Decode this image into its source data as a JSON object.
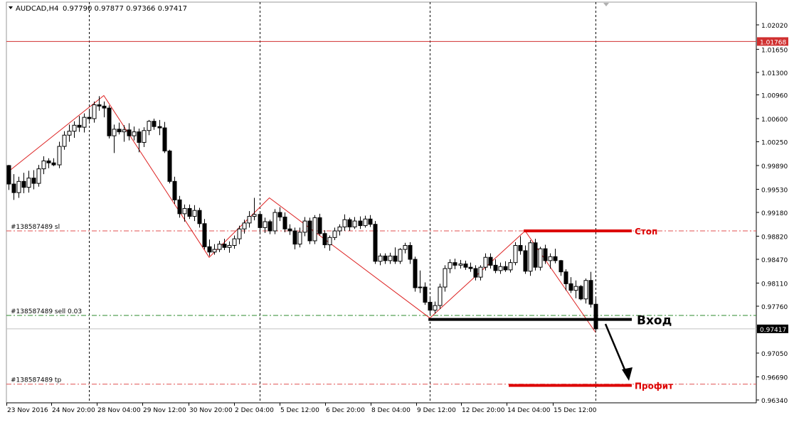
{
  "header": {
    "symbol": "AUDCAD,H4",
    "ohlc": "0.97790 0.97877 0.97366 0.97417"
  },
  "chart_data": {
    "type": "candlestick",
    "symbol": "AUDCAD",
    "timeframe": "H4",
    "yaxis_ticks": [
      1.0202,
      1.0165,
      1.013,
      1.0096,
      1.006,
      1.0025,
      0.9989,
      0.9953,
      0.9918,
      0.9882,
      0.9847,
      0.9811,
      0.9776,
      0.9705,
      0.9669,
      0.9634
    ],
    "ylim": [
      0.9634,
      1.0245
    ],
    "xaxis_labels": [
      "23 Nov 2016",
      "24 Nov 20:00",
      "28 Nov 04:00",
      "29 Nov 12:00",
      "30 Nov 20:00",
      "2 Dec 04:00",
      "5 Dec 12:00",
      "6 Dec 20:00",
      "8 Dec 04:00",
      "9 Dec 12:00",
      "12 Dec 20:00",
      "14 Dec 04:00",
      "15 Dec 12:00"
    ],
    "bar_count": 118,
    "candles": [
      [
        0.9989,
        0.999,
        0.9952,
        0.9961
      ],
      [
        0.9961,
        0.9976,
        0.9937,
        0.9948
      ],
      [
        0.9948,
        0.9972,
        0.994,
        0.9965
      ],
      [
        0.9965,
        0.9978,
        0.9947,
        0.9956
      ],
      [
        0.9956,
        0.9981,
        0.9948,
        0.997
      ],
      [
        0.997,
        0.9982,
        0.9953,
        0.9962
      ],
      [
        0.9962,
        0.999,
        0.9957,
        0.9984
      ],
      [
        0.9984,
        1.0003,
        0.9976,
        0.9996
      ],
      [
        0.9996,
        1.0,
        0.9985,
        0.9993
      ],
      [
        0.9993,
        1.0,
        0.9988,
        0.999
      ],
      [
        0.999,
        1.0025,
        0.9985,
        1.0018
      ],
      [
        1.0018,
        1.0041,
        1.0013,
        1.0035
      ],
      [
        1.0035,
        1.0051,
        1.0025,
        1.0041
      ],
      [
        1.0041,
        1.0056,
        1.0031,
        1.005
      ],
      [
        1.005,
        1.0064,
        1.004,
        1.0047
      ],
      [
        1.0047,
        1.0068,
        1.0039,
        1.0062
      ],
      [
        1.0062,
        1.0073,
        1.0056,
        1.006
      ],
      [
        1.006,
        1.0086,
        1.0054,
        1.0081
      ],
      [
        1.0081,
        1.0094,
        1.0072,
        1.0079
      ],
      [
        1.0079,
        1.0086,
        1.0062,
        1.0076
      ],
      [
        1.0076,
        1.008,
        1.003,
        1.0034
      ],
      [
        1.0034,
        1.0051,
        1.0008,
        1.0044
      ],
      [
        1.0044,
        1.0054,
        1.0036,
        1.004
      ],
      [
        1.004,
        1.005,
        1.0025,
        1.0043
      ],
      [
        1.0043,
        1.0053,
        1.0027,
        1.0034
      ],
      [
        1.0034,
        1.0048,
        1.0027,
        1.004
      ],
      [
        1.004,
        1.0045,
        1.0009,
        1.0024
      ],
      [
        1.0024,
        1.0047,
        1.0017,
        1.0042
      ],
      [
        1.0042,
        1.0058,
        1.0035,
        1.0056
      ],
      [
        1.0056,
        1.006,
        1.0043,
        1.0048
      ],
      [
        1.0048,
        1.0058,
        1.0035,
        1.0046
      ],
      [
        1.0046,
        1.0055,
        1.0008,
        1.0011
      ],
      [
        1.0011,
        1.0013,
        0.9962,
        0.9965
      ],
      [
        0.9965,
        0.9972,
        0.9931,
        0.9937
      ],
      [
        0.9937,
        0.9943,
        0.991,
        0.9916
      ],
      [
        0.9916,
        0.993,
        0.9904,
        0.9924
      ],
      [
        0.9924,
        0.993,
        0.9908,
        0.9912
      ],
      [
        0.9912,
        0.9929,
        0.9905,
        0.9921
      ],
      [
        0.9921,
        0.9925,
        0.9895,
        0.9901
      ],
      [
        0.9901,
        0.9908,
        0.9862,
        0.9866
      ],
      [
        0.9866,
        0.9877,
        0.9852,
        0.9858
      ],
      [
        0.9858,
        0.987,
        0.9854,
        0.9862
      ],
      [
        0.9862,
        0.9875,
        0.9858,
        0.987
      ],
      [
        0.987,
        0.9878,
        0.9861,
        0.9865
      ],
      [
        0.9865,
        0.9874,
        0.9857,
        0.9868
      ],
      [
        0.9868,
        0.9883,
        0.9863,
        0.9878
      ],
      [
        0.9878,
        0.9898,
        0.987,
        0.9893
      ],
      [
        0.9893,
        0.9907,
        0.9886,
        0.9902
      ],
      [
        0.9902,
        0.992,
        0.9895,
        0.9912
      ],
      [
        0.9912,
        0.994,
        0.9906,
        0.9915
      ],
      [
        0.9915,
        0.992,
        0.9888,
        0.9895
      ],
      [
        0.9895,
        0.991,
        0.9887,
        0.9904
      ],
      [
        0.9904,
        0.9907,
        0.9885,
        0.989
      ],
      [
        0.989,
        0.9923,
        0.9885,
        0.9918
      ],
      [
        0.9918,
        0.9926,
        0.9905,
        0.9911
      ],
      [
        0.9911,
        0.9918,
        0.9888,
        0.9893
      ],
      [
        0.9893,
        0.99,
        0.9884,
        0.989
      ],
      [
        0.989,
        0.9895,
        0.9862,
        0.987
      ],
      [
        0.987,
        0.9895,
        0.9865,
        0.9888
      ],
      [
        0.9888,
        0.9911,
        0.9882,
        0.9905
      ],
      [
        0.9905,
        0.991,
        0.987,
        0.9875
      ],
      [
        0.9875,
        0.9914,
        0.987,
        0.991
      ],
      [
        0.991,
        0.9916,
        0.9883,
        0.9886
      ],
      [
        0.9886,
        0.9891,
        0.9864,
        0.9869
      ],
      [
        0.9869,
        0.9883,
        0.986,
        0.988
      ],
      [
        0.988,
        0.9895,
        0.9876,
        0.989
      ],
      [
        0.989,
        0.99,
        0.9883,
        0.9896
      ],
      [
        0.9896,
        0.9915,
        0.989,
        0.9907
      ],
      [
        0.9907,
        0.991,
        0.989,
        0.9896
      ],
      [
        0.9896,
        0.9911,
        0.9893,
        0.9905
      ],
      [
        0.9905,
        0.9912,
        0.9893,
        0.9898
      ],
      [
        0.9898,
        0.9913,
        0.9895,
        0.9908
      ],
      [
        0.9908,
        0.9914,
        0.9896,
        0.99
      ],
      [
        0.99,
        0.9905,
        0.984,
        0.9844
      ],
      [
        0.9844,
        0.9856,
        0.9838,
        0.9852
      ],
      [
        0.9852,
        0.9856,
        0.984,
        0.9845
      ],
      [
        0.9845,
        0.9857,
        0.984,
        0.9852
      ],
      [
        0.9852,
        0.9865,
        0.984,
        0.9844
      ],
      [
        0.9844,
        0.9864,
        0.984,
        0.9862
      ],
      [
        0.9862,
        0.9872,
        0.9856,
        0.9868
      ],
      [
        0.9868,
        0.9873,
        0.984,
        0.9847
      ],
      [
        0.9847,
        0.9851,
        0.9798,
        0.9804
      ],
      [
        0.9804,
        0.983,
        0.9796,
        0.9805
      ],
      [
        0.9805,
        0.9812,
        0.9778,
        0.9782
      ],
      [
        0.9782,
        0.9789,
        0.9763,
        0.977
      ],
      [
        0.977,
        0.9783,
        0.9765,
        0.9777
      ],
      [
        0.9777,
        0.981,
        0.9772,
        0.9805
      ],
      [
        0.9805,
        0.9838,
        0.9798,
        0.9833
      ],
      [
        0.9833,
        0.9847,
        0.9826,
        0.9842
      ],
      [
        0.9842,
        0.9848,
        0.9832,
        0.9838
      ],
      [
        0.9838,
        0.9846,
        0.9833,
        0.984
      ],
      [
        0.984,
        0.9845,
        0.9831,
        0.9835
      ],
      [
        0.9835,
        0.9842,
        0.9828,
        0.9833
      ],
      [
        0.9833,
        0.9838,
        0.9815,
        0.982
      ],
      [
        0.982,
        0.9838,
        0.9815,
        0.9835
      ],
      [
        0.9835,
        0.9856,
        0.983,
        0.985
      ],
      [
        0.985,
        0.9856,
        0.9833,
        0.9838
      ],
      [
        0.9838,
        0.9847,
        0.9826,
        0.983
      ],
      [
        0.983,
        0.9842,
        0.9825,
        0.9836
      ],
      [
        0.9836,
        0.9844,
        0.9828,
        0.9831
      ],
      [
        0.9831,
        0.9847,
        0.9827,
        0.9842
      ],
      [
        0.9842,
        0.9873,
        0.9838,
        0.9868
      ],
      [
        0.9868,
        0.9882,
        0.9854,
        0.986
      ],
      [
        0.986,
        0.9868,
        0.9825,
        0.9829
      ],
      [
        0.9829,
        0.9876,
        0.9822,
        0.9872
      ],
      [
        0.9872,
        0.9878,
        0.983,
        0.9835
      ],
      [
        0.9835,
        0.9866,
        0.983,
        0.9863
      ],
      [
        0.9863,
        0.9869,
        0.984,
        0.9845
      ],
      [
        0.9845,
        0.9856,
        0.9833,
        0.9851
      ],
      [
        0.9851,
        0.9863,
        0.9841,
        0.9845
      ],
      [
        0.9845,
        0.9846,
        0.9822,
        0.9828
      ],
      [
        0.9828,
        0.9832,
        0.98,
        0.981
      ],
      [
        0.981,
        0.982,
        0.9796,
        0.98
      ],
      [
        0.98,
        0.9815,
        0.9788,
        0.9806
      ],
      [
        0.9806,
        0.9808,
        0.9785,
        0.9787
      ],
      [
        0.9787,
        0.9818,
        0.978,
        0.9815
      ],
      [
        0.9815,
        0.9828,
        0.9774,
        0.9779
      ],
      [
        0.9779,
        0.97877,
        0.97366,
        0.97417
      ]
    ],
    "zigzag": [
      {
        "bar": 0,
        "price": 0.998
      },
      {
        "bar": 19,
        "price": 1.0095
      },
      {
        "bar": 40,
        "price": 0.985
      },
      {
        "bar": 52,
        "price": 0.994
      },
      {
        "bar": 84,
        "price": 0.9758
      },
      {
        "bar": 103,
        "price": 0.989
      },
      {
        "bar": 117,
        "price": 0.97366
      }
    ],
    "order_lines": [
      {
        "label": "#138587489 sl",
        "price": 0.989,
        "color": "#e05050"
      },
      {
        "label": "#138587489 sell 0.03",
        "price": 0.9762,
        "color": "#2e8b2e"
      },
      {
        "label": "#138587489 tp",
        "price": 0.9658,
        "color": "#e05050"
      }
    ],
    "red_line": {
      "price": 1.01768,
      "label": "1.01768"
    },
    "current_price": {
      "price": 0.97417,
      "label": "0.97417"
    },
    "period_separators": [
      16,
      50,
      84,
      117
    ],
    "annotations": [
      {
        "text": "Стоп",
        "price": 0.989,
        "bar_start": 103,
        "bar_end": 123,
        "color": "#dd0000"
      },
      {
        "text": "Вход",
        "price": 0.9756,
        "bar_start": 84,
        "bar_end": 123,
        "color": "#000000"
      },
      {
        "text": "Профит",
        "price": 0.9656,
        "bar_start": 100,
        "bar_end": 123,
        "color": "#dd0000"
      }
    ]
  }
}
